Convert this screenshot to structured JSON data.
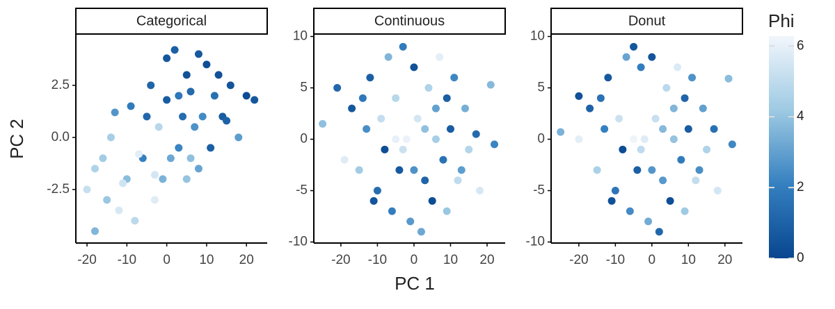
{
  "chart_data": {
    "type": "scatter",
    "xlabel": "PC 1",
    "ylabel": "PC 2",
    "colorbar": {
      "title": "Phi",
      "lim": [
        0,
        6.28
      ],
      "ticks": [
        0,
        2,
        4,
        6
      ],
      "colors": [
        "#08468f",
        "#3580c0",
        "#9ecae3",
        "#f2f6fc"
      ]
    },
    "panels": [
      {
        "title": "Categorical",
        "xlim": [
          -22.8,
          25.2
        ],
        "ylim": [
          -5.07,
          4.93
        ],
        "xticks": [
          -20,
          -10,
          0,
          10,
          20
        ],
        "yticks": [
          -2.5,
          {
            "value": 0,
            "label": "0.0"
          },
          2.5
        ],
        "x": [
          -20,
          -18,
          -15,
          -12,
          -10,
          -8,
          -6,
          -5,
          -3,
          -1,
          0,
          2,
          3,
          5,
          6,
          8,
          9,
          10,
          12,
          14,
          16,
          18,
          20,
          22,
          -14,
          -9,
          -4,
          1,
          4,
          7,
          11,
          -18,
          -11,
          -2,
          3,
          8,
          13,
          -7,
          0,
          6,
          -16,
          -13,
          -3,
          5,
          15
        ],
        "y": [
          -2.5,
          -1.5,
          -3,
          -3.5,
          -2,
          -4,
          -1,
          1,
          -3,
          -2,
          3.8,
          4.2,
          2,
          3,
          -1,
          4,
          1,
          3.5,
          2,
          1,
          2.5,
          0,
          2,
          1.8,
          0,
          1.5,
          2.5,
          -1,
          1,
          0.5,
          -0.5,
          -4.5,
          -2.2,
          0.5,
          -0.5,
          -1.5,
          3,
          -0.8,
          1.8,
          2.2,
          -1,
          1.2,
          -1.8,
          -2,
          0.8
        ],
        "c": [
          5.2,
          4.6,
          4.1,
          5.6,
          3.8,
          4.9,
          2.1,
          1.2,
          5.8,
          3.5,
          0.6,
          0.9,
          1.8,
          0.4,
          3.9,
          0.7,
          2.4,
          0.3,
          1.5,
          0.8,
          0.5,
          2.9,
          0.2,
          0.6,
          4.4,
          1.9,
          1.1,
          3.2,
          1.4,
          2.6,
          0.9,
          3.6,
          5.4,
          4.8,
          2.2,
          3.1,
          0.4,
          5.9,
          0.8,
          1.3,
          4.3,
          2.7,
          5.5,
          4.0,
          1.0
        ]
      },
      {
        "title": "Continuous",
        "xlim": [
          -27.4,
          24.95
        ],
        "ylim": [
          -10.1,
          10.17
        ],
        "xticks": [
          -20,
          -10,
          0,
          10,
          20
        ],
        "yticks": [
          -10,
          -5,
          0,
          5,
          10
        ],
        "x": [
          -25,
          -21,
          -19,
          -17,
          -15,
          -13,
          -12,
          -10,
          -9,
          -8,
          -7,
          -6,
          -5,
          -4,
          -3,
          -2,
          -1,
          0,
          1,
          2,
          3,
          4,
          5,
          6,
          7,
          8,
          9,
          10,
          11,
          12,
          14,
          15,
          17,
          18,
          21,
          22,
          -11,
          -5,
          0,
          6,
          -14,
          3,
          9,
          -3,
          13
        ],
        "y": [
          1.5,
          5,
          -2,
          3,
          -3,
          1,
          6,
          -5,
          2,
          -1,
          8,
          -7,
          4,
          -3,
          9,
          0,
          -8,
          7,
          2,
          -9,
          -4,
          5,
          -6,
          3,
          8,
          -2,
          -7,
          1,
          6,
          -4,
          3,
          -1,
          0.5,
          -5,
          5.3,
          -0.5,
          -6,
          0,
          -3,
          0,
          4,
          1,
          4,
          -1,
          -3
        ],
        "c": [
          3.9,
          1.2,
          5.8,
          0.6,
          4.3,
          2.5,
          0.9,
          1.4,
          5.1,
          0.3,
          3.6,
          2.0,
          4.8,
          0.7,
          1.9,
          6.1,
          2.8,
          0.4,
          5.5,
          3.2,
          1.1,
          4.6,
          0.2,
          3.0,
          5.9,
          1.6,
          4.1,
          0.8,
          2.3,
          5.0,
          3.4,
          4.7,
          1.3,
          5.6,
          3.7,
          2.2,
          0.5,
          6.0,
          2.6,
          4.4,
          1.8,
          3.9,
          0.9,
          5.3,
          2.9
        ]
      },
      {
        "title": "Donut",
        "xlim": [
          -27.6,
          24.8
        ],
        "ylim": [
          -10.1,
          10.17
        ],
        "xticks": [
          -20,
          -10,
          0,
          10,
          20
        ],
        "yticks": [
          -10,
          -5,
          0,
          5,
          10
        ],
        "x": [
          -25,
          -20,
          -20,
          -17,
          -15,
          -13,
          -12,
          -10,
          -9,
          -8,
          -7,
          -6,
          -5,
          -4,
          -3,
          -2,
          -1,
          0,
          1,
          2,
          3,
          4,
          5,
          6,
          7,
          8,
          9,
          10,
          11,
          12,
          14,
          15,
          17,
          18,
          21,
          22,
          -11,
          -5,
          0,
          6,
          -14,
          3,
          9,
          -3,
          13
        ],
        "y": [
          0.7,
          4.2,
          0,
          3,
          -3,
          1,
          6,
          -5,
          2,
          -1,
          8,
          -7,
          9,
          -3,
          7,
          0,
          -8,
          8,
          2,
          -9,
          -4,
          5,
          -6,
          3,
          7,
          -2,
          -7,
          1,
          6,
          -4,
          3,
          -1,
          1,
          -5,
          5.9,
          -0.5,
          -6,
          0,
          -3,
          0,
          4,
          1,
          4,
          -1,
          -3
        ],
        "c": [
          3.5,
          0.4,
          5.9,
          1.0,
          4.5,
          2.1,
          0.7,
          1.7,
          5.3,
          0.2,
          3.1,
          2.4,
          0.6,
          0.9,
          2.0,
          5.8,
          3.3,
          0.5,
          5.2,
          1.2,
          2.8,
          4.9,
          0.3,
          3.6,
          5.7,
          1.9,
          4.2,
          0.8,
          2.6,
          5.1,
          3.0,
          4.6,
          1.5,
          5.5,
          3.8,
          2.3,
          0.4,
          6.2,
          2.7,
          4.0,
          1.6,
          3.7,
          1.1,
          5.0,
          2.5
        ]
      }
    ]
  }
}
